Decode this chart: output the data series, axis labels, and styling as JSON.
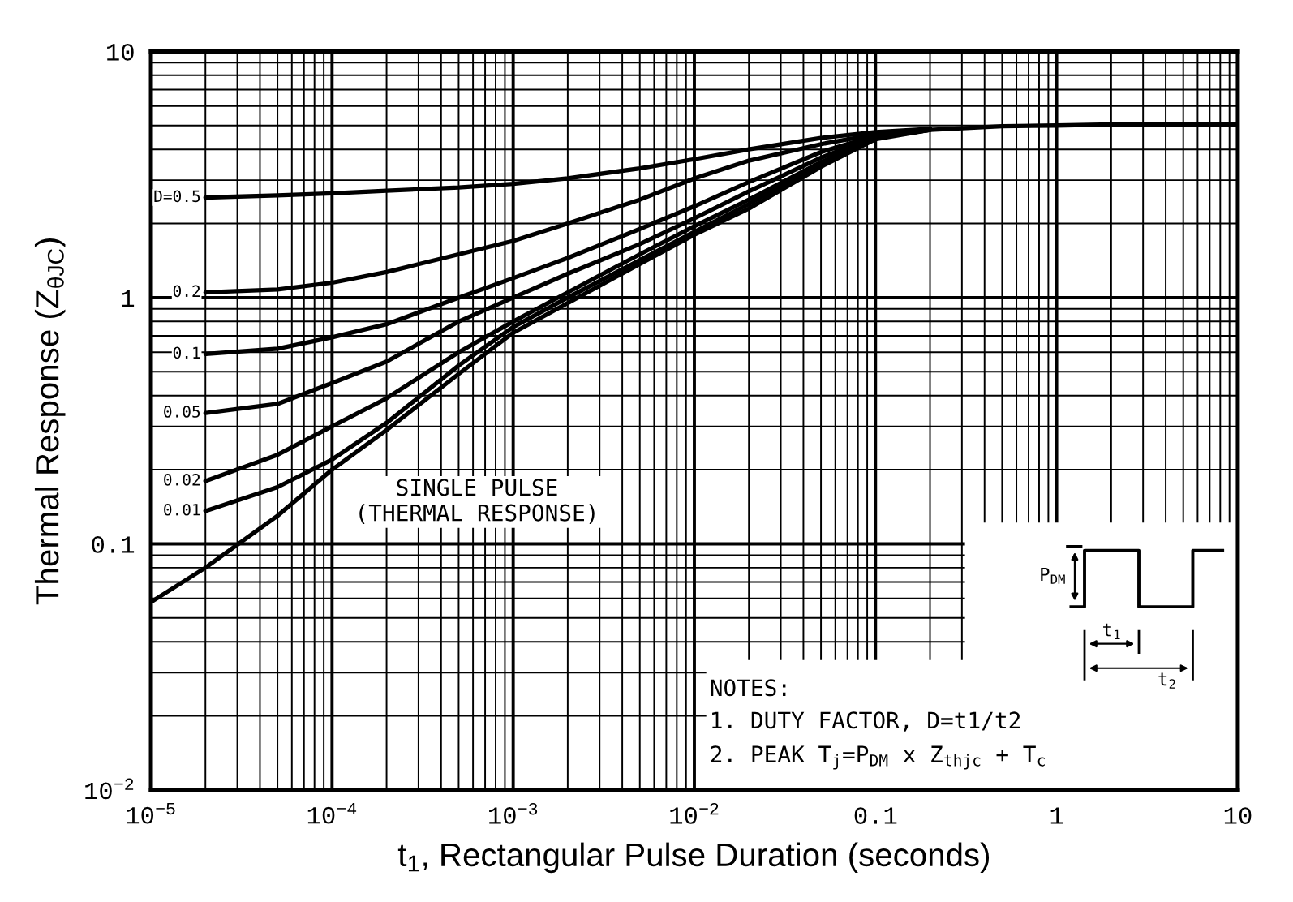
{
  "chart_data": {
    "type": "line",
    "log": "xy",
    "grid": true,
    "xlabel": "t$_{1}$, Rectangular Pulse Duration (seconds)",
    "ylabel": "Thermal Response (Z$_{θJC}$)",
    "xlim": [
      1e-05,
      10
    ],
    "ylim": [
      0.01,
      10
    ],
    "xticks": [
      {
        "value": 1e-05,
        "label": "10$^{−5}$"
      },
      {
        "value": 2e-05,
        "label": null
      },
      {
        "value": 3e-05,
        "label": null
      },
      {
        "value": 4e-05,
        "label": null
      },
      {
        "value": 5e-05,
        "label": null
      },
      {
        "value": 6e-05,
        "label": null
      },
      {
        "value": 7e-05,
        "label": null
      },
      {
        "value": 8e-05,
        "label": null
      },
      {
        "value": 9e-05,
        "label": null
      },
      {
        "value": 0.0001,
        "label": "10$^{−4}$"
      },
      {
        "value": 0.0002,
        "label": null
      },
      {
        "value": 0.0003,
        "label": null
      },
      {
        "value": 0.0004,
        "label": null
      },
      {
        "value": 0.0005,
        "label": null
      },
      {
        "value": 0.0006,
        "label": null
      },
      {
        "value": 0.0007,
        "label": null
      },
      {
        "value": 0.0008,
        "label": null
      },
      {
        "value": 0.0009,
        "label": null
      },
      {
        "value": 0.001,
        "label": "10$^{−3}$"
      },
      {
        "value": 0.002,
        "label": null
      },
      {
        "value": 0.003,
        "label": null
      },
      {
        "value": 0.004,
        "label": null
      },
      {
        "value": 0.005,
        "label": null
      },
      {
        "value": 0.006,
        "label": null
      },
      {
        "value": 0.007,
        "label": null
      },
      {
        "value": 0.008,
        "label": null
      },
      {
        "value": 0.009,
        "label": null
      },
      {
        "value": 0.01,
        "label": "10$^{−2}$"
      },
      {
        "value": 0.02,
        "label": null
      },
      {
        "value": 0.03,
        "label": null
      },
      {
        "value": 0.04,
        "label": null
      },
      {
        "value": 0.05,
        "label": null
      },
      {
        "value": 0.06,
        "label": null
      },
      {
        "value": 0.07,
        "label": null
      },
      {
        "value": 0.08,
        "label": null
      },
      {
        "value": 0.09,
        "label": null
      },
      0.1,
      {
        "value": 0.2,
        "label": null
      },
      {
        "value": 0.3,
        "label": null
      },
      {
        "value": 0.4,
        "label": null
      },
      {
        "value": 0.5,
        "label": null
      },
      {
        "value": 0.6,
        "label": null
      },
      {
        "value": 0.7,
        "label": null
      },
      {
        "value": 0.8,
        "label": null
      },
      {
        "value": 0.9,
        "label": null
      },
      1,
      {
        "value": 2,
        "label": null
      },
      {
        "value": 3,
        "label": null
      },
      {
        "value": 4,
        "label": null
      },
      {
        "value": 5,
        "label": null
      },
      {
        "value": 6,
        "label": null
      },
      {
        "value": 7,
        "label": null
      },
      {
        "value": 8,
        "label": null
      },
      {
        "value": 9,
        "label": null
      },
      10
    ],
    "yticks": [
      {
        "value": 0.01,
        "label": "10$^{−2}$"
      },
      {
        "value": 0.02,
        "label": null
      },
      {
        "value": 0.03,
        "label": null
      },
      {
        "value": 0.04,
        "label": null
      },
      {
        "value": 0.05,
        "label": null
      },
      {
        "value": 0.06,
        "label": null
      },
      {
        "value": 0.07,
        "label": null
      },
      {
        "value": 0.08,
        "label": null
      },
      {
        "value": 0.09,
        "label": null
      },
      0.1,
      {
        "value": 0.2,
        "label": null
      },
      {
        "value": 0.3,
        "label": null
      },
      {
        "value": 0.4,
        "label": null
      },
      {
        "value": 0.5,
        "label": null
      },
      {
        "value": 0.6,
        "label": null
      },
      {
        "value": 0.7,
        "label": null
      },
      {
        "value": 0.8,
        "label": null
      },
      {
        "value": 0.9,
        "label": null
      },
      1,
      {
        "value": 2,
        "label": null
      },
      {
        "value": 3,
        "label": null
      },
      {
        "value": 4,
        "label": null
      },
      {
        "value": 5,
        "label": null
      },
      {
        "value": 6,
        "label": null
      },
      {
        "value": 7,
        "label": null
      },
      {
        "value": 8,
        "label": null
      },
      {
        "value": 9,
        "label": null
      },
      10
    ],
    "series": [
      {
        "name": "D=0.5",
        "color": "#000000",
        "x": [
          2e-05,
          5e-05,
          0.0001,
          0.0002,
          0.0005,
          0.001,
          0.002,
          0.005,
          0.01,
          0.02,
          0.05,
          0.1,
          0.2
        ],
        "values": [
          2.55,
          2.6,
          2.65,
          2.72,
          2.8,
          2.9,
          3.05,
          3.35,
          3.65,
          4.0,
          4.45,
          4.7,
          4.85
        ]
      },
      {
        "name": "0.2",
        "color": "#000000",
        "x": [
          2e-05,
          5e-05,
          0.0001,
          0.0002,
          0.0005,
          0.001,
          0.002,
          0.005,
          0.01,
          0.02,
          0.05,
          0.1,
          0.2
        ],
        "values": [
          1.05,
          1.08,
          1.15,
          1.27,
          1.5,
          1.7,
          2.0,
          2.5,
          3.05,
          3.6,
          4.2,
          4.6,
          4.85
        ]
      },
      {
        "name": "0.1",
        "color": "#000000",
        "x": [
          2e-05,
          5e-05,
          0.0001,
          0.0002,
          0.0005,
          0.001,
          0.002,
          0.005,
          0.01,
          0.02,
          0.05,
          0.1,
          0.2
        ],
        "values": [
          0.59,
          0.62,
          0.69,
          0.78,
          1.0,
          1.2,
          1.45,
          1.9,
          2.35,
          2.95,
          3.9,
          4.55,
          4.85
        ]
      },
      {
        "name": "0.05",
        "color": "#000000",
        "x": [
          2e-05,
          5e-05,
          0.0001,
          0.0002,
          0.0005,
          0.001,
          0.002,
          0.005,
          0.01,
          0.02,
          0.05,
          0.1,
          0.2
        ],
        "values": [
          0.34,
          0.37,
          0.45,
          0.55,
          0.8,
          1.0,
          1.25,
          1.65,
          2.1,
          2.7,
          3.7,
          4.5,
          4.85
        ]
      },
      {
        "name": "0.02",
        "color": "#000000",
        "x": [
          2e-05,
          5e-05,
          0.0001,
          0.0002,
          0.0005,
          0.001,
          0.002,
          0.005,
          0.01,
          0.02,
          0.05,
          0.1,
          0.2
        ],
        "values": [
          0.18,
          0.23,
          0.3,
          0.39,
          0.6,
          0.8,
          1.05,
          1.5,
          1.95,
          2.5,
          3.55,
          4.45,
          4.8
        ]
      },
      {
        "name": "0.01",
        "color": "#000000",
        "x": [
          2e-05,
          5e-05,
          0.0001,
          0.0002,
          0.0005,
          0.001,
          0.002,
          0.005,
          0.01,
          0.02,
          0.05,
          0.1,
          0.2
        ],
        "values": [
          0.136,
          0.17,
          0.22,
          0.31,
          0.53,
          0.76,
          1.0,
          1.42,
          1.85,
          2.4,
          3.5,
          4.45,
          4.8
        ]
      },
      {
        "name": "SINGLE PULSE\n(THERMAL RESPONSE)",
        "color": "#000000",
        "x": [
          1e-05,
          2e-05,
          5e-05,
          0.0001,
          0.0002,
          0.0005,
          0.001,
          0.002,
          0.005,
          0.01,
          0.02,
          0.05,
          0.1,
          0.2,
          0.5,
          1,
          2,
          5,
          10
        ],
        "values": [
          0.058,
          0.08,
          0.13,
          0.2,
          0.29,
          0.49,
          0.72,
          0.95,
          1.37,
          1.8,
          2.3,
          3.4,
          4.4,
          4.8,
          4.97,
          5.0,
          5.05,
          5.05,
          5.05
        ]
      }
    ],
    "annotations": [
      "NOTES:",
      "1. DUTY FACTOR, D=t1/t2",
      "2. PEAK T$_{j}$=P$_{DM}$ x Z$_{thjc}$ + T$_{c}$",
      "P$_{DM}$",
      "t$_{1}$",
      "t$_{2}$"
    ]
  }
}
